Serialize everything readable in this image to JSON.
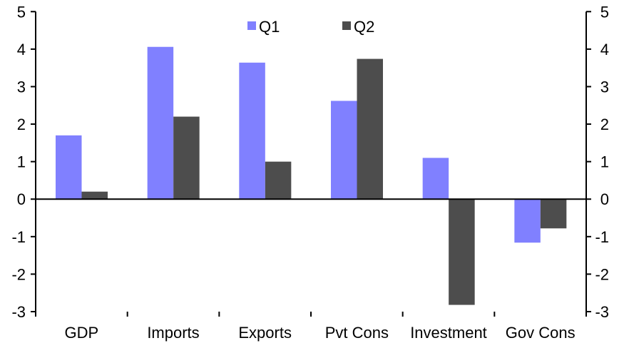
{
  "chart_data": {
    "type": "bar",
    "title": "",
    "xlabel": "",
    "ylabel": "",
    "ylim": [
      -3,
      5
    ],
    "yticks": [
      "5",
      "4",
      "3",
      "2",
      "1",
      "0",
      "-1",
      "-2",
      "-3"
    ],
    "categories": [
      "GDP",
      "Imports",
      "Exports",
      "Pvt Cons",
      "Investment",
      "Gov Cons"
    ],
    "series": [
      {
        "name": "Q1",
        "color": "#8080FF",
        "values": [
          1.7,
          4.06,
          3.64,
          2.62,
          1.1,
          -1.16
        ]
      },
      {
        "name": "Q2",
        "color": "#4D4D4D",
        "values": [
          0.2,
          2.2,
          1.0,
          3.74,
          -2.82,
          -0.78
        ]
      }
    ],
    "legend_position": "top-center",
    "grid": false,
    "secondary_axis": true
  }
}
